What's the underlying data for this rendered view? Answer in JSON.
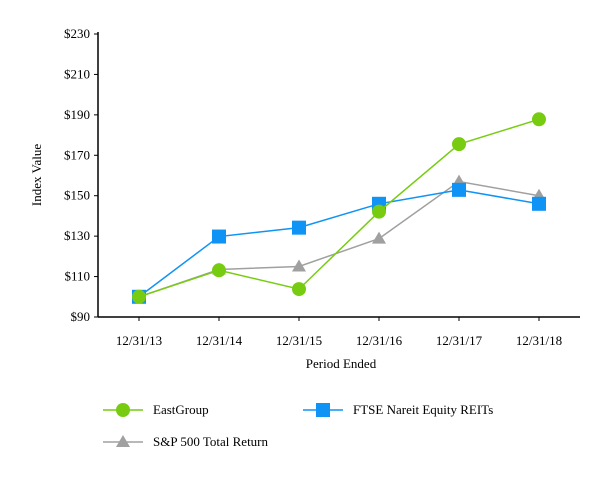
{
  "chart_data": {
    "type": "line",
    "title": "",
    "xlabel": "Period Ended",
    "ylabel": "Index Value",
    "categories": [
      "12/31/13",
      "12/31/14",
      "12/31/15",
      "12/31/16",
      "12/31/17",
      "12/31/18"
    ],
    "ylim": [
      90,
      230
    ],
    "yticks": [
      90,
      110,
      130,
      150,
      170,
      190,
      210,
      230
    ],
    "ytick_labels": [
      "$90",
      "$110",
      "$130",
      "$150",
      "$170",
      "$190",
      "$210",
      "$230"
    ],
    "grid": false,
    "legend_position": "bottom",
    "series": [
      {
        "name": "EastGroup",
        "color": "#77cc11",
        "marker": "circle",
        "values": [
          100,
          113.1,
          103.8,
          142.1,
          175.5,
          187.8
        ]
      },
      {
        "name": "FTSE Nareit Equity REITs",
        "color": "#0f93f5",
        "marker": "square",
        "values": [
          100,
          129.8,
          134.2,
          146.0,
          152.9,
          146.0
        ]
      },
      {
        "name": "S&P 500 Total Return",
        "color": "#a0a0a0",
        "marker": "triangle",
        "values": [
          100,
          113.5,
          115.0,
          128.8,
          157.0,
          150.0
        ]
      }
    ]
  }
}
